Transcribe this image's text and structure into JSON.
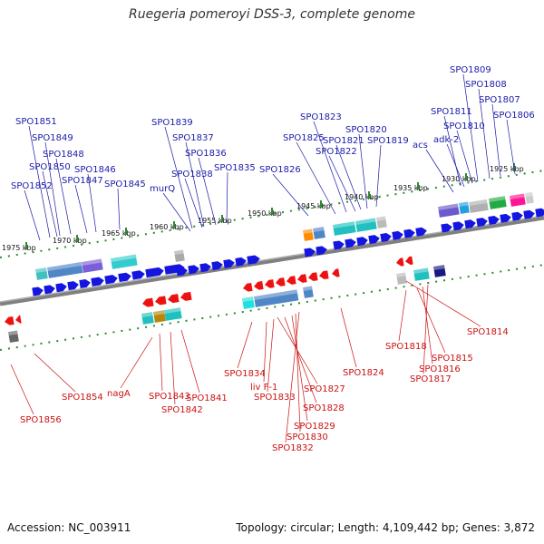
{
  "title": "Ruegeria pomeroyi DSS-3, complete genome",
  "footer": {
    "accession": "Accession: NC_003911",
    "topology": "Topology: circular; Length: 4,109,442 bp; Genes: 3,872"
  },
  "colors": {
    "plus_label": "#1a1aa8",
    "minus_label": "#cc1111",
    "plus_gene": "#1515e0",
    "minus_gene": "#ee1111",
    "backbone": "#808080",
    "ruler": "#2e8b2e"
  },
  "kbp_ticks": [
    "1975 kbp",
    "1970 kbp",
    "1965 kbp",
    "1960 kbp",
    "1955 kbp",
    "1950 kbp",
    "1945 kbp",
    "1940 kbp",
    "1935 kbp",
    "1930 kbp",
    "1925 kbp"
  ],
  "plus_labels": [
    "SPO1809",
    "SPO1808",
    "SPO1807",
    "SPO1806",
    "SPO1811",
    "SPO1810",
    "adk-2",
    "acs",
    "SPO1823",
    "SPO1820",
    "SPO1821",
    "SPO1822",
    "SPO1825",
    "SPO1819",
    "SPO1826",
    "SPO1839",
    "SPO1837",
    "SPO1836",
    "SPO1838",
    "SPO1835",
    "murQ",
    "SPO1851",
    "SPO1849",
    "SPO1848",
    "SPO1850",
    "SPO1846",
    "SPO1847",
    "SPO1852",
    "SPO1845"
  ],
  "minus_labels": [
    "SPO1814",
    "SPO1818",
    "SPO1815",
    "SPO1816",
    "SPO1817",
    "SPO1824",
    "SPO1834",
    "liv F-1",
    "SPO1827",
    "SPO1833",
    "SPO1828",
    "SPO1829",
    "SPO1830",
    "SPO1832",
    "nagA",
    "SPO1843",
    "SPO1841",
    "SPO1842",
    "SPO1854",
    "SPO1856"
  ]
}
